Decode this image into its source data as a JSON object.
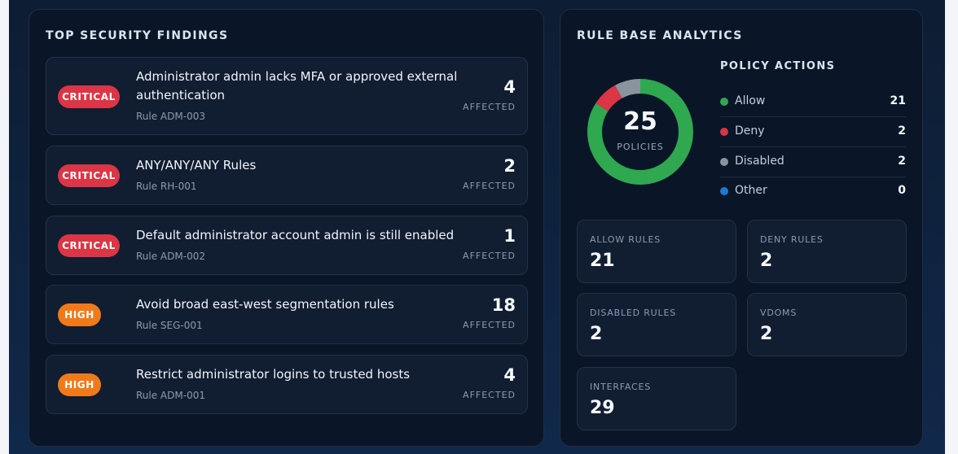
{
  "findings_panel": {
    "title": "TOP SECURITY FINDINGS",
    "affected_label": "AFFECTED",
    "findings": [
      {
        "severity": "CRITICAL",
        "title": "Administrator admin lacks MFA or approved external authentication",
        "rule": "Rule ADM-003",
        "count": "4"
      },
      {
        "severity": "CRITICAL",
        "title": "ANY/ANY/ANY Rules",
        "rule": "Rule RH-001",
        "count": "2"
      },
      {
        "severity": "CRITICAL",
        "title": "Default administrator account admin is still enabled",
        "rule": "Rule ADM-002",
        "count": "1"
      },
      {
        "severity": "HIGH",
        "title": "Avoid broad east-west segmentation rules",
        "rule": "Rule SEG-001",
        "count": "18"
      },
      {
        "severity": "HIGH",
        "title": "Restrict administrator logins to trusted hosts",
        "rule": "Rule ADM-001",
        "count": "4"
      }
    ]
  },
  "analytics_panel": {
    "title": "RULE BASE ANALYTICS",
    "donut": {
      "total": "25",
      "label": "POLICIES"
    },
    "policy_actions": {
      "title": "POLICY ACTIONS",
      "items": [
        {
          "label": "Allow",
          "value": "21",
          "color": "#2fa84f"
        },
        {
          "label": "Deny",
          "value": "2",
          "color": "#dc3545"
        },
        {
          "label": "Disabled",
          "value": "2",
          "color": "#8a939e"
        },
        {
          "label": "Other",
          "value": "0",
          "color": "#1f78d1"
        }
      ]
    },
    "stats": [
      {
        "label": "ALLOW RULES",
        "value": "21"
      },
      {
        "label": "DENY RULES",
        "value": "2"
      },
      {
        "label": "DISABLED RULES",
        "value": "2"
      },
      {
        "label": "VDOMS",
        "value": "2"
      },
      {
        "label": "INTERFACES",
        "value": "29"
      }
    ]
  },
  "colors": {
    "critical": "#dc3545",
    "high": "#f07a1a",
    "background": "#0c1a2e",
    "panel": "#0a1628"
  }
}
